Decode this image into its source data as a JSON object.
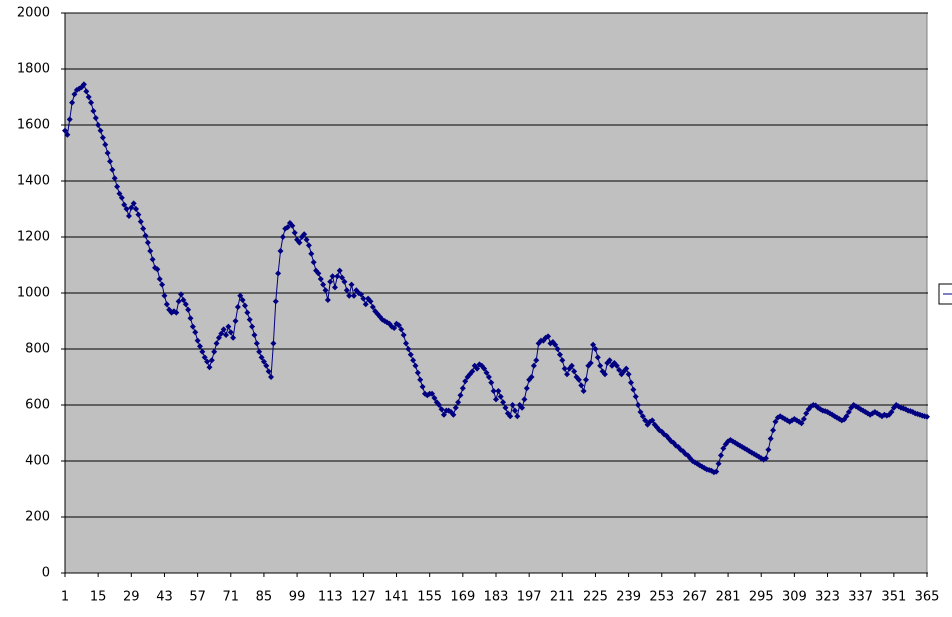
{
  "chart_data": {
    "type": "line",
    "color": "#000080",
    "grid": true,
    "ylim": [
      0,
      2000
    ],
    "yticks": [
      0,
      200,
      400,
      600,
      800,
      1000,
      1200,
      1400,
      1600,
      1800,
      2000
    ],
    "xlim": [
      1,
      365
    ],
    "xticks": [
      1,
      15,
      29,
      43,
      57,
      71,
      85,
      99,
      113,
      127,
      141,
      155,
      169,
      183,
      197,
      211,
      225,
      239,
      253,
      267,
      281,
      295,
      309,
      323,
      337,
      351,
      365
    ],
    "x": [
      1,
      2,
      3,
      4,
      5,
      6,
      7,
      8,
      9,
      10,
      11,
      12,
      13,
      14,
      15,
      16,
      17,
      18,
      19,
      20,
      21,
      22,
      23,
      24,
      25,
      26,
      27,
      28,
      29,
      30,
      31,
      32,
      33,
      34,
      35,
      36,
      37,
      38,
      39,
      40,
      41,
      42,
      43,
      44,
      45,
      46,
      47,
      48,
      49,
      50,
      51,
      52,
      53,
      54,
      55,
      56,
      57,
      58,
      59,
      60,
      61,
      62,
      63,
      64,
      65,
      66,
      67,
      68,
      69,
      70,
      71,
      72,
      73,
      74,
      75,
      76,
      77,
      78,
      79,
      80,
      81,
      82,
      83,
      84,
      85,
      86,
      87,
      88,
      89,
      90,
      91,
      92,
      93,
      94,
      95,
      96,
      97,
      98,
      99,
      100,
      101,
      102,
      103,
      104,
      105,
      106,
      107,
      108,
      109,
      110,
      111,
      112,
      113,
      114,
      115,
      116,
      117,
      118,
      119,
      120,
      121,
      122,
      123,
      124,
      125,
      126,
      127,
      128,
      129,
      130,
      131,
      132,
      133,
      134,
      135,
      136,
      137,
      138,
      139,
      140,
      141,
      142,
      143,
      144,
      145,
      146,
      147,
      148,
      149,
      150,
      151,
      152,
      153,
      154,
      155,
      156,
      157,
      158,
      159,
      160,
      161,
      162,
      163,
      164,
      165,
      166,
      167,
      168,
      169,
      170,
      171,
      172,
      173,
      174,
      175,
      176,
      177,
      178,
      179,
      180,
      181,
      182,
      183,
      184,
      185,
      186,
      187,
      188,
      189,
      190,
      191,
      192,
      193,
      194,
      195,
      196,
      197,
      198,
      199,
      200,
      201,
      202,
      203,
      204,
      205,
      206,
      207,
      208,
      209,
      210,
      211,
      212,
      213,
      214,
      215,
      216,
      217,
      218,
      219,
      220,
      221,
      222,
      223,
      224,
      225,
      226,
      227,
      228,
      229,
      230,
      231,
      232,
      233,
      234,
      235,
      236,
      237,
      238,
      239,
      240,
      241,
      242,
      243,
      244,
      245,
      246,
      247,
      248,
      249,
      250,
      251,
      252,
      253,
      254,
      255,
      256,
      257,
      258,
      259,
      260,
      261,
      262,
      263,
      264,
      265,
      266,
      267,
      268,
      269,
      270,
      271,
      272,
      273,
      274,
      275,
      276,
      277,
      278,
      279,
      280,
      281,
      282,
      283,
      284,
      285,
      286,
      287,
      288,
      289,
      290,
      291,
      292,
      293,
      294,
      295,
      296,
      297,
      298,
      299,
      300,
      301,
      302,
      303,
      304,
      305,
      306,
      307,
      308,
      309,
      310,
      311,
      312,
      313,
      314,
      315,
      316,
      317,
      318,
      319,
      320,
      321,
      322,
      323,
      324,
      325,
      326,
      327,
      328,
      329,
      330,
      331,
      332,
      333,
      334,
      335,
      336,
      337,
      338,
      339,
      340,
      341,
      342,
      343,
      344,
      345,
      346,
      347,
      348,
      349,
      350,
      351,
      352,
      353,
      354,
      355,
      356,
      357,
      358,
      359,
      360,
      361,
      362,
      363,
      364,
      365
    ],
    "values": [
      1580,
      1565,
      1620,
      1680,
      1710,
      1725,
      1730,
      1735,
      1745,
      1720,
      1700,
      1680,
      1650,
      1625,
      1600,
      1580,
      1555,
      1530,
      1500,
      1470,
      1440,
      1410,
      1380,
      1355,
      1340,
      1315,
      1300,
      1275,
      1305,
      1320,
      1300,
      1280,
      1255,
      1230,
      1205,
      1180,
      1150,
      1120,
      1090,
      1085,
      1050,
      1030,
      990,
      960,
      940,
      930,
      935,
      930,
      970,
      995,
      975,
      960,
      940,
      910,
      880,
      860,
      830,
      810,
      790,
      770,
      755,
      735,
      760,
      790,
      820,
      840,
      855,
      870,
      850,
      880,
      860,
      840,
      900,
      950,
      990,
      975,
      955,
      930,
      905,
      880,
      850,
      820,
      790,
      770,
      755,
      740,
      720,
      700,
      820,
      970,
      1070,
      1150,
      1200,
      1230,
      1235,
      1250,
      1240,
      1215,
      1190,
      1180,
      1200,
      1210,
      1190,
      1170,
      1140,
      1110,
      1080,
      1070,
      1050,
      1030,
      1010,
      975,
      1040,
      1060,
      1020,
      1060,
      1080,
      1055,
      1040,
      1010,
      990,
      1030,
      990,
      1010,
      1000,
      995,
      980,
      960,
      980,
      970,
      950,
      935,
      925,
      915,
      905,
      900,
      895,
      890,
      880,
      875,
      890,
      885,
      870,
      850,
      820,
      800,
      780,
      760,
      740,
      715,
      690,
      665,
      640,
      635,
      640,
      640,
      625,
      610,
      600,
      585,
      565,
      580,
      580,
      575,
      565,
      590,
      610,
      635,
      660,
      685,
      700,
      710,
      720,
      740,
      730,
      745,
      740,
      730,
      715,
      700,
      680,
      650,
      620,
      650,
      630,
      610,
      590,
      570,
      560,
      600,
      580,
      560,
      600,
      590,
      620,
      660,
      690,
      700,
      740,
      760,
      820,
      830,
      830,
      840,
      845,
      820,
      825,
      815,
      800,
      780,
      760,
      730,
      710,
      730,
      740,
      720,
      700,
      690,
      670,
      650,
      690,
      740,
      750,
      815,
      800,
      770,
      740,
      720,
      710,
      750,
      760,
      740,
      750,
      740,
      725,
      710,
      720,
      730,
      710,
      680,
      655,
      630,
      600,
      575,
      560,
      545,
      530,
      540,
      545,
      530,
      520,
      510,
      505,
      495,
      490,
      480,
      470,
      465,
      455,
      450,
      440,
      435,
      425,
      420,
      410,
      400,
      395,
      390,
      385,
      380,
      375,
      370,
      368,
      365,
      360,
      362,
      390,
      420,
      445,
      460,
      470,
      475,
      470,
      465,
      460,
      455,
      450,
      445,
      440,
      435,
      430,
      425,
      420,
      415,
      410,
      405,
      410,
      440,
      480,
      510,
      540,
      555,
      560,
      555,
      550,
      545,
      540,
      545,
      550,
      545,
      540,
      535,
      550,
      570,
      585,
      595,
      600,
      598,
      590,
      585,
      580,
      578,
      575,
      570,
      565,
      560,
      555,
      550,
      545,
      548,
      560,
      575,
      590,
      600,
      595,
      590,
      585,
      580,
      575,
      570,
      565,
      570,
      575,
      570,
      565,
      560,
      565,
      562,
      565,
      575,
      590,
      600,
      595,
      590,
      588,
      585,
      580,
      578,
      575,
      570,
      568,
      565,
      562,
      560,
      558
    ]
  }
}
